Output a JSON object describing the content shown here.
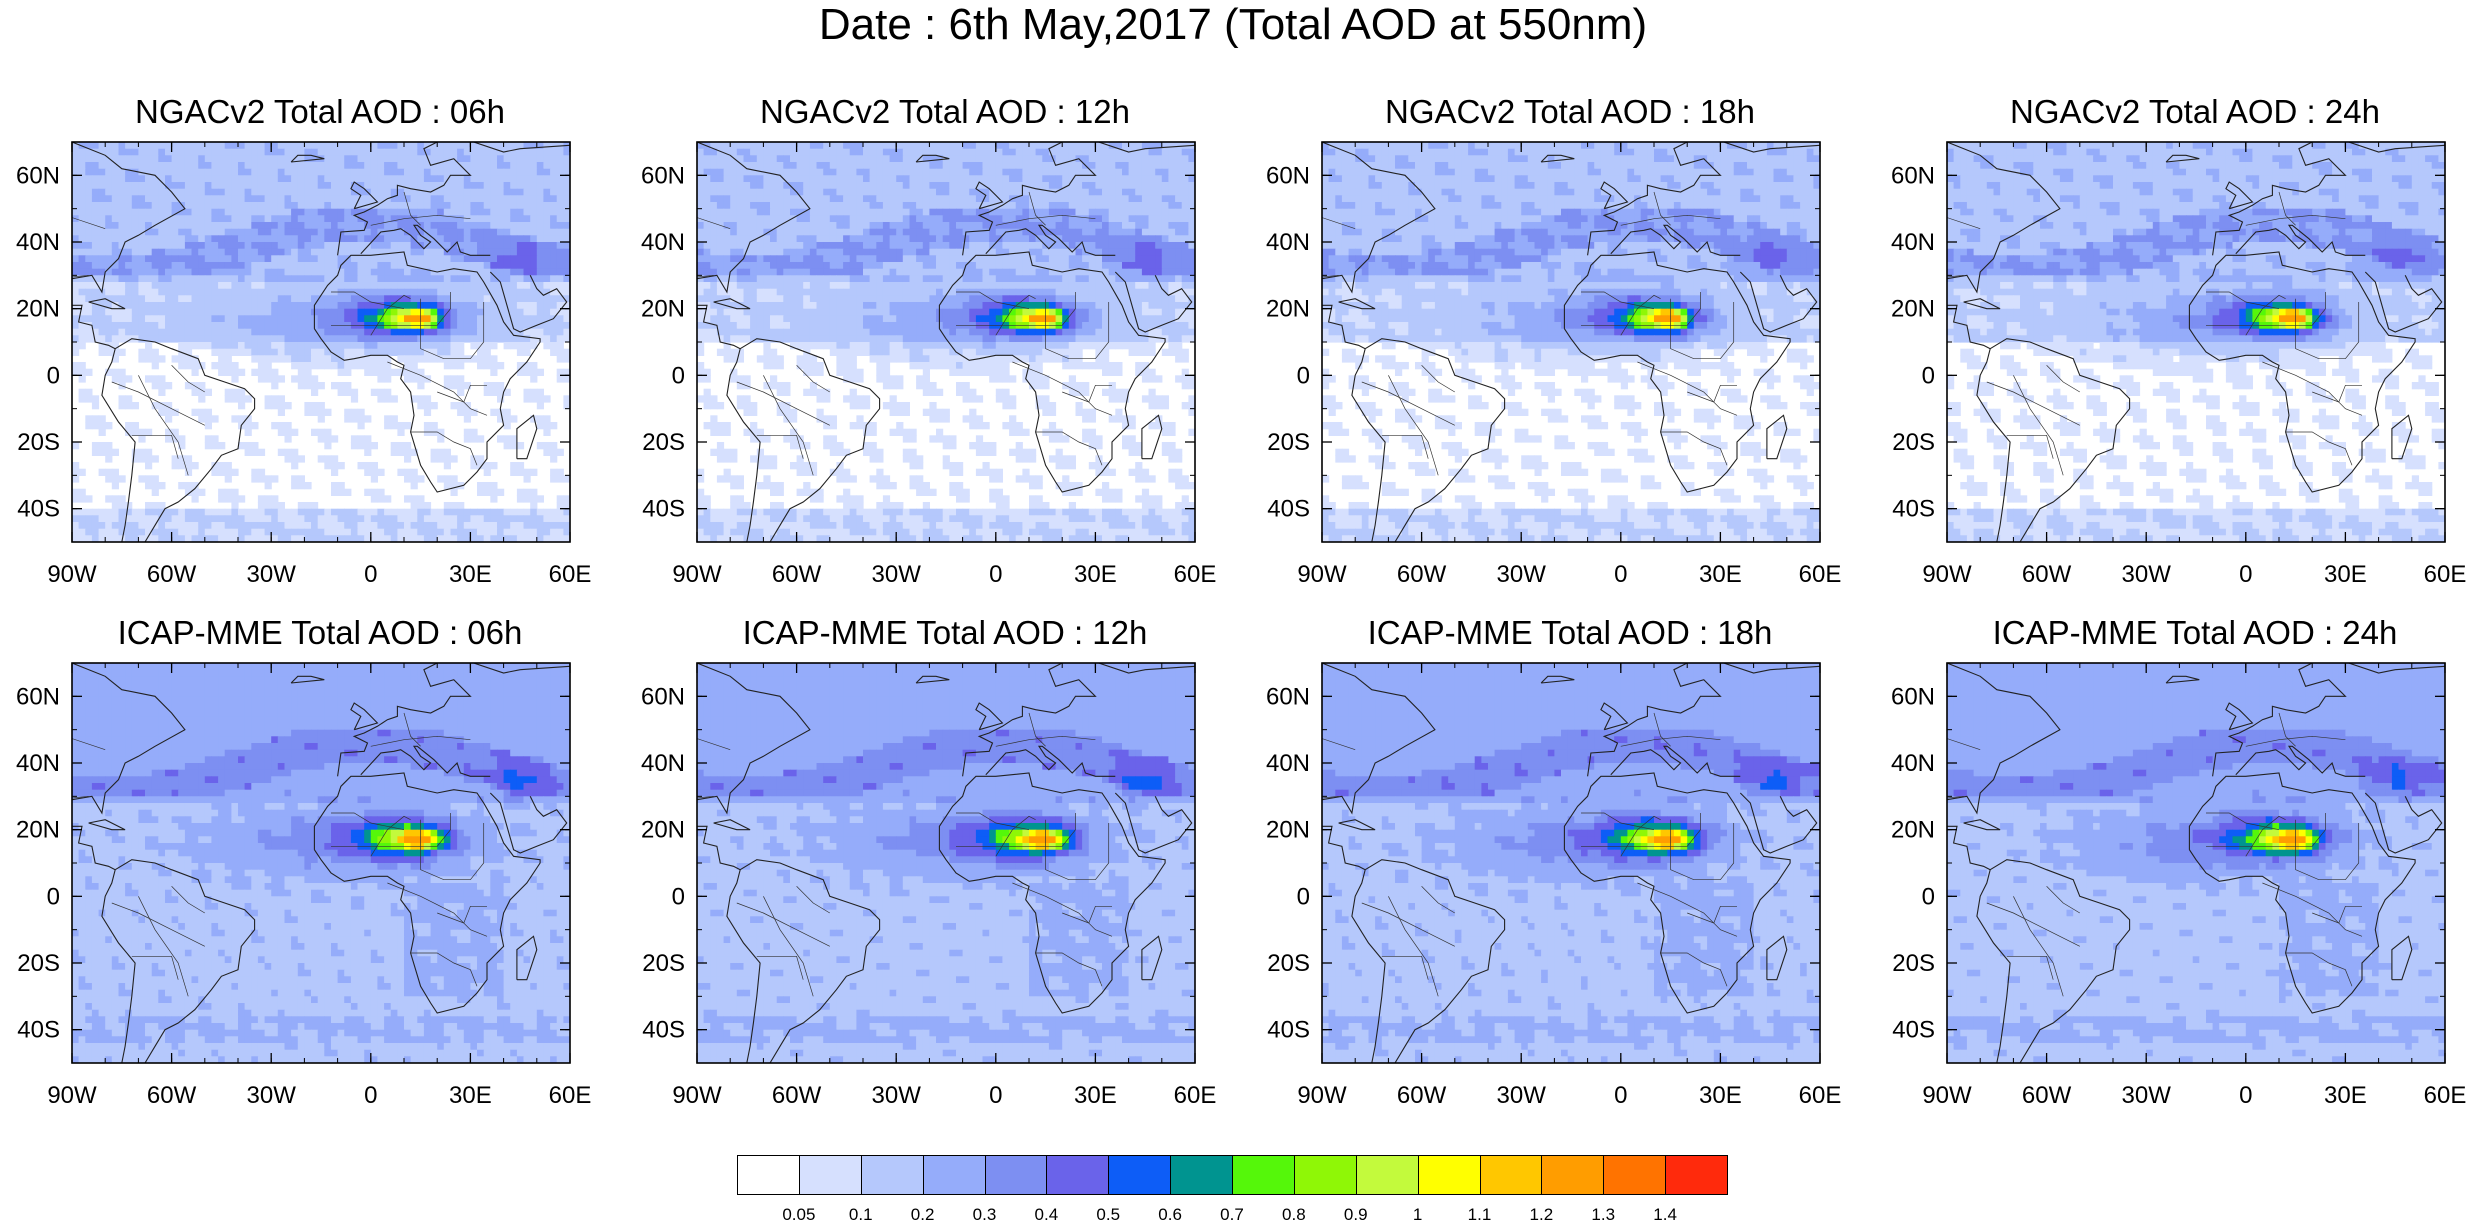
{
  "figure_title": "Date : 6th May,2017 (Total AOD at 550nm)",
  "panels": [
    {
      "title": "NGACv2 Total AOD : 06h",
      "model": "NGACv2",
      "lead": "06h"
    },
    {
      "title": "NGACv2 Total AOD : 12h",
      "model": "NGACv2",
      "lead": "12h"
    },
    {
      "title": "NGACv2 Total AOD : 18h",
      "model": "NGACv2",
      "lead": "18h"
    },
    {
      "title": "NGACv2 Total AOD : 24h",
      "model": "NGACv2",
      "lead": "24h"
    },
    {
      "title": "ICAP-MME Total AOD : 06h",
      "model": "ICAP-MME",
      "lead": "06h"
    },
    {
      "title": "ICAP-MME Total AOD : 12h",
      "model": "ICAP-MME",
      "lead": "12h"
    },
    {
      "title": "ICAP-MME Total AOD : 18h",
      "model": "ICAP-MME",
      "lead": "18h"
    },
    {
      "title": "ICAP-MME Total AOD : 24h",
      "model": "ICAP-MME",
      "lead": "24h"
    }
  ],
  "map": {
    "lon_range": [
      -90,
      60
    ],
    "lat_range": [
      -50,
      70
    ],
    "lon_ticks": [
      {
        "value": -90,
        "label": "90W"
      },
      {
        "value": -60,
        "label": "60W"
      },
      {
        "value": -30,
        "label": "30W"
      },
      {
        "value": 0,
        "label": "0"
      },
      {
        "value": 30,
        "label": "30E"
      },
      {
        "value": 60,
        "label": "60E"
      }
    ],
    "lat_ticks": [
      {
        "value": 60,
        "label": "60N"
      },
      {
        "value": 40,
        "label": "40N"
      },
      {
        "value": 20,
        "label": "20N"
      },
      {
        "value": 0,
        "label": "0"
      },
      {
        "value": -20,
        "label": "20S"
      },
      {
        "value": -40,
        "label": "40S"
      }
    ]
  },
  "colorbar": {
    "colors": [
      "#ffffff",
      "#d6e0fe",
      "#b5c8fc",
      "#95acfa",
      "#7d8ff2",
      "#6a63ea",
      "#0d5df7",
      "#009490",
      "#55f70a",
      "#8ff706",
      "#c3fa3c",
      "#ffff00",
      "#ffc700",
      "#ff9d00",
      "#ff7300",
      "#ff2a0c"
    ],
    "labels": [
      "0.05",
      "0.1",
      "0.2",
      "0.3",
      "0.4",
      "0.5",
      "0.6",
      "0.7",
      "0.8",
      "0.9",
      "1",
      "1.1",
      "1.2",
      "1.3",
      "1.4"
    ]
  }
}
